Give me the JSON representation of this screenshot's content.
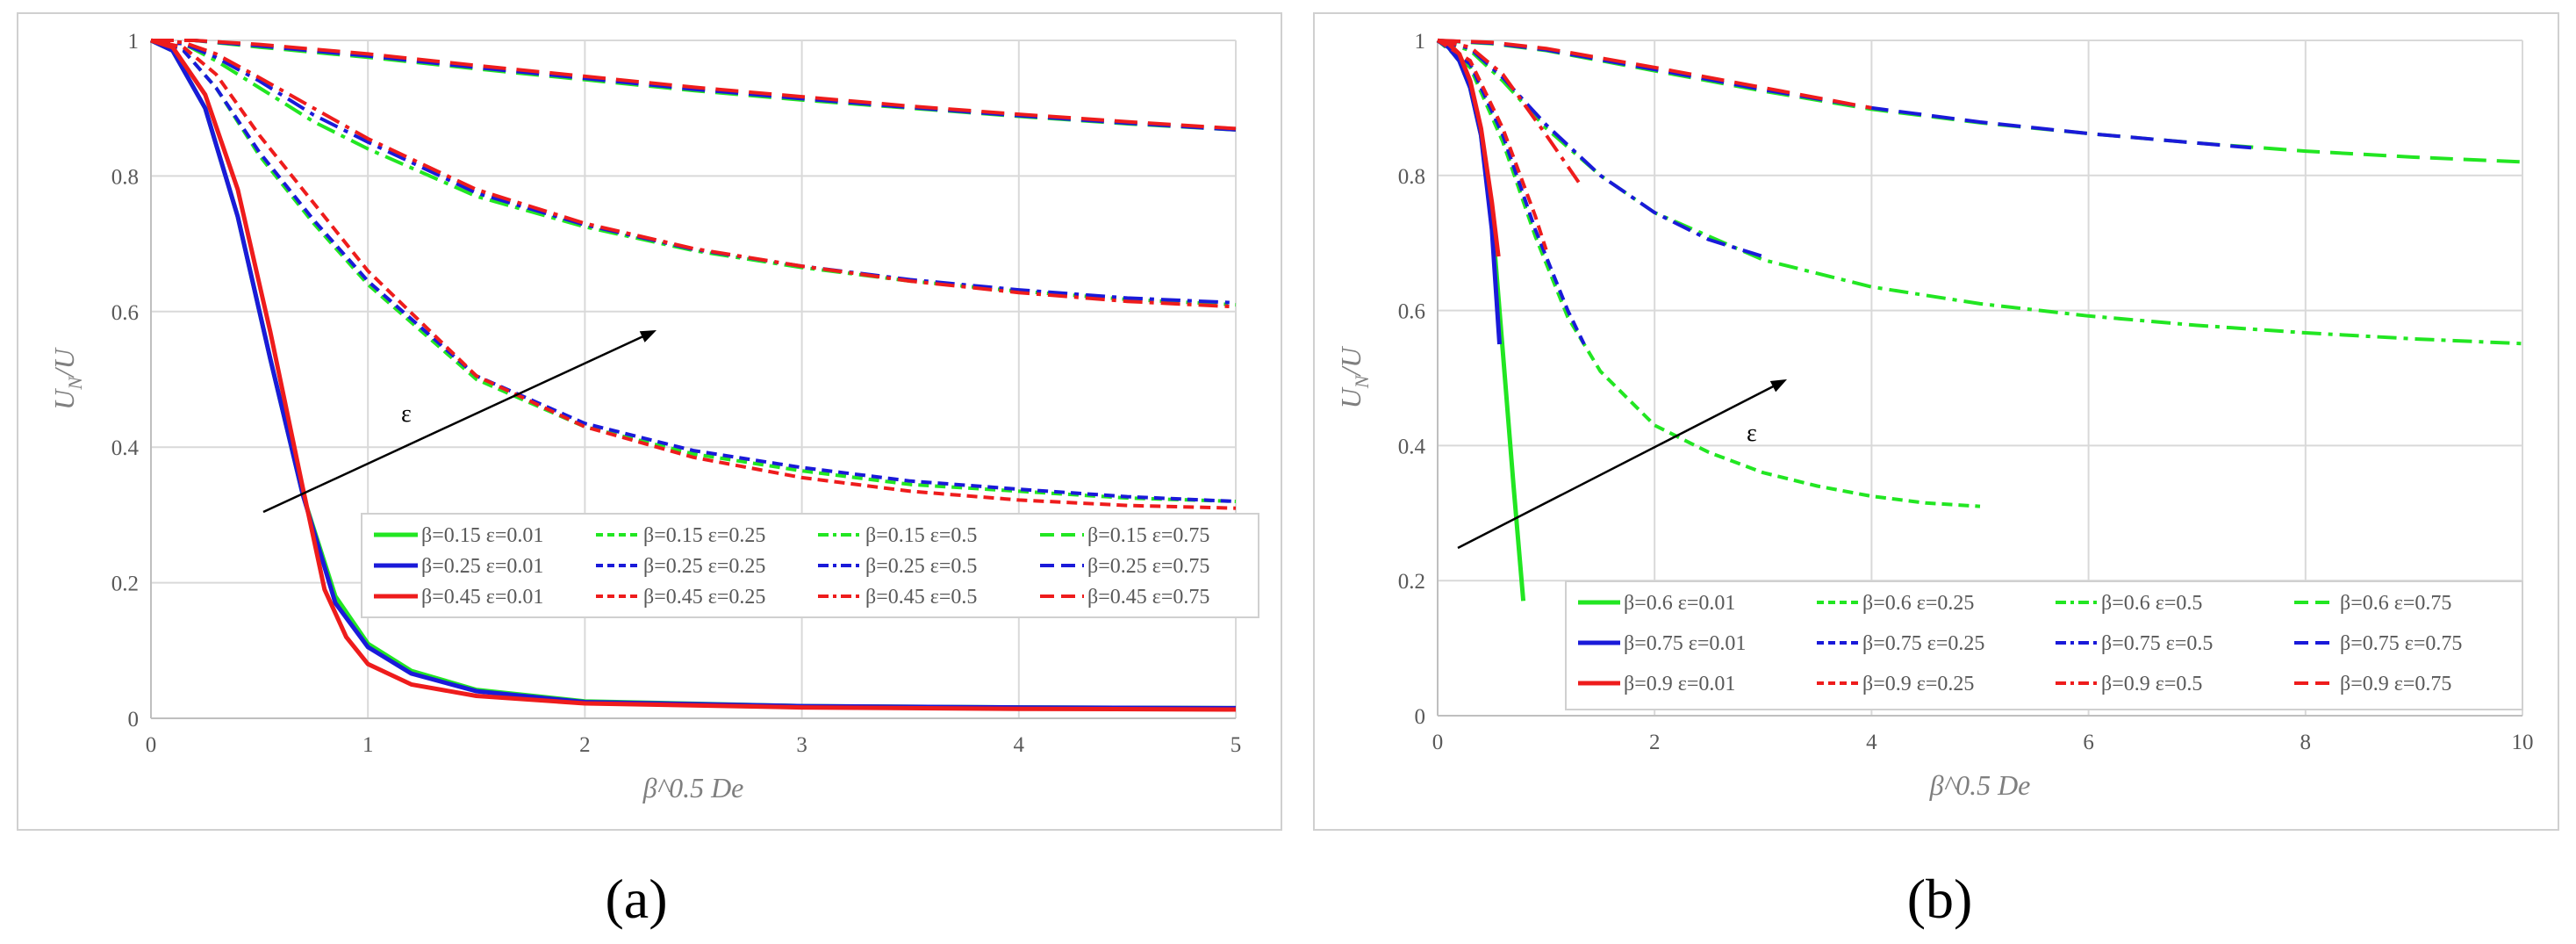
{
  "colors": {
    "green": "#22e622",
    "blue": "#1a1ad9",
    "red": "#ee1c1c"
  },
  "chart_data": [
    {
      "type": "line",
      "panel_label": "(a)",
      "xlabel": "β^0.5 De",
      "ylabel": "U_N/U",
      "ylabel_main": "U",
      "ylabel_sub": "N",
      "ylabel_tail": "/U",
      "xlim": [
        0,
        5
      ],
      "ylim": [
        0,
        1
      ],
      "xticks": [
        "0",
        "1",
        "2",
        "3",
        "4",
        "5"
      ],
      "yticks": [
        "0",
        "0.2",
        "0.4",
        "0.6",
        "0.8",
        "1"
      ],
      "annotation": "ε",
      "legend_position": "bottom-right",
      "series": [
        {
          "name": "β=0.15 ε=0.01",
          "color": "green",
          "dash": "solid",
          "x": [
            0,
            0.1,
            0.25,
            0.4,
            0.55,
            0.7,
            0.85,
            1.0,
            1.2,
            1.5,
            2,
            3,
            4,
            5
          ],
          "y": [
            1,
            0.985,
            0.9,
            0.74,
            0.53,
            0.33,
            0.18,
            0.11,
            0.07,
            0.042,
            0.025,
            0.018,
            0.016,
            0.015
          ]
        },
        {
          "name": "β=0.15 ε=0.25",
          "color": "green",
          "dash": "dash",
          "x": [
            0,
            0.15,
            0.3,
            0.5,
            0.75,
            1.0,
            1.5,
            2,
            2.5,
            3,
            3.5,
            4,
            4.5,
            5
          ],
          "y": [
            1,
            0.985,
            0.93,
            0.83,
            0.73,
            0.64,
            0.5,
            0.43,
            0.39,
            0.365,
            0.345,
            0.335,
            0.325,
            0.32
          ]
        },
        {
          "name": "β=0.15 ε=0.5",
          "color": "green",
          "dash": "dashdot",
          "x": [
            0,
            0.15,
            0.3,
            0.5,
            0.75,
            1.0,
            1.5,
            2,
            2.5,
            3,
            3.5,
            4,
            4.5,
            5
          ],
          "y": [
            1,
            0.995,
            0.97,
            0.93,
            0.88,
            0.84,
            0.77,
            0.725,
            0.69,
            0.665,
            0.645,
            0.63,
            0.618,
            0.61
          ]
        },
        {
          "name": "β=0.15 ε=0.75",
          "color": "green",
          "dash": "longdash",
          "x": [
            0,
            0.2,
            0.5,
            1.0,
            1.5,
            2,
            2.5,
            3,
            3.5,
            4,
            4.5,
            5
          ],
          "y": [
            1,
            1,
            0.99,
            0.975,
            0.958,
            0.942,
            0.926,
            0.912,
            0.9,
            0.888,
            0.877,
            0.868
          ]
        },
        {
          "name": "β=0.25 ε=0.01",
          "color": "blue",
          "dash": "solid",
          "x": [
            0,
            0.1,
            0.25,
            0.4,
            0.55,
            0.7,
            0.85,
            1.0,
            1.2,
            1.5,
            2,
            3,
            4,
            5
          ],
          "y": [
            1,
            0.985,
            0.9,
            0.74,
            0.53,
            0.33,
            0.17,
            0.105,
            0.066,
            0.04,
            0.024,
            0.018,
            0.016,
            0.015
          ]
        },
        {
          "name": "β=0.25 ε=0.25",
          "color": "blue",
          "dash": "dash",
          "x": [
            0,
            0.15,
            0.3,
            0.5,
            0.75,
            1.0,
            1.5,
            2,
            2.5,
            3,
            3.5,
            4,
            4.5,
            5
          ],
          "y": [
            1,
            0.985,
            0.93,
            0.835,
            0.735,
            0.645,
            0.505,
            0.435,
            0.395,
            0.37,
            0.35,
            0.338,
            0.327,
            0.32
          ]
        },
        {
          "name": "β=0.25 ε=0.5",
          "color": "blue",
          "dash": "dashdot",
          "x": [
            0,
            0.15,
            0.3,
            0.5,
            0.75,
            1.0,
            1.5,
            2,
            2.5,
            3,
            3.5,
            4,
            4.5,
            5
          ],
          "y": [
            1,
            0.995,
            0.975,
            0.94,
            0.89,
            0.85,
            0.775,
            0.728,
            0.692,
            0.667,
            0.647,
            0.632,
            0.62,
            0.613
          ]
        },
        {
          "name": "β=0.25 ε=0.75",
          "color": "blue",
          "dash": "longdash",
          "x": [
            0,
            0.2,
            0.5,
            1.0,
            1.5,
            2,
            2.5,
            3,
            3.5,
            4,
            4.5,
            5
          ],
          "y": [
            1,
            1,
            0.992,
            0.977,
            0.96,
            0.944,
            0.928,
            0.914,
            0.901,
            0.889,
            0.878,
            0.868
          ]
        },
        {
          "name": "β=0.45 ε=0.01",
          "color": "red",
          "dash": "solid",
          "x": [
            0,
            0.1,
            0.25,
            0.4,
            0.55,
            0.7,
            0.8,
            0.9,
            1.0,
            1.2,
            1.5,
            2,
            3,
            4,
            5
          ],
          "y": [
            1,
            0.99,
            0.92,
            0.78,
            0.57,
            0.34,
            0.19,
            0.12,
            0.08,
            0.05,
            0.033,
            0.022,
            0.016,
            0.014,
            0.013
          ]
        },
        {
          "name": "β=0.45 ε=0.25",
          "color": "red",
          "dash": "dash",
          "x": [
            0,
            0.15,
            0.3,
            0.5,
            0.75,
            1.0,
            1.5,
            2,
            2.5,
            3,
            3.5,
            4,
            4.5,
            5
          ],
          "y": [
            1,
            0.99,
            0.95,
            0.86,
            0.76,
            0.66,
            0.505,
            0.43,
            0.385,
            0.355,
            0.335,
            0.322,
            0.314,
            0.31
          ]
        },
        {
          "name": "β=0.45 ε=0.5",
          "color": "red",
          "dash": "dashdot",
          "x": [
            0,
            0.15,
            0.3,
            0.5,
            0.75,
            1.0,
            1.5,
            2,
            2.5,
            3,
            3.5,
            4,
            4.5,
            5
          ],
          "y": [
            1,
            0.997,
            0.98,
            0.945,
            0.9,
            0.855,
            0.78,
            0.73,
            0.693,
            0.667,
            0.645,
            0.628,
            0.615,
            0.607
          ]
        },
        {
          "name": "β=0.45 ε=0.75",
          "color": "red",
          "dash": "longdash",
          "x": [
            0,
            0.2,
            0.5,
            1.0,
            1.5,
            2,
            2.5,
            3,
            3.5,
            4,
            4.5,
            5
          ],
          "y": [
            1,
            1,
            0.994,
            0.98,
            0.963,
            0.947,
            0.931,
            0.917,
            0.903,
            0.891,
            0.88,
            0.87
          ]
        }
      ]
    },
    {
      "type": "line",
      "panel_label": "(b)",
      "xlabel": "β^0.5 De",
      "ylabel": "U_N/U",
      "ylabel_main": "U",
      "ylabel_sub": "N",
      "ylabel_tail": "/U",
      "xlim": [
        0,
        10
      ],
      "ylim": [
        0,
        1
      ],
      "xticks": [
        "0",
        "2",
        "4",
        "6",
        "8",
        "10"
      ],
      "yticks": [
        "0",
        "0.2",
        "0.4",
        "0.6",
        "0.8",
        "1"
      ],
      "annotation": "ε",
      "legend_position": "bottom-right",
      "series": [
        {
          "name": "β=0.6 ε=0.01",
          "color": "green",
          "dash": "solid",
          "x": [
            0,
            0.1,
            0.2,
            0.3,
            0.4,
            0.5,
            0.55,
            0.6,
            0.7,
            0.79
          ],
          "y": [
            1,
            0.99,
            0.97,
            0.93,
            0.86,
            0.74,
            0.64,
            0.54,
            0.34,
            0.17
          ]
        },
        {
          "name": "β=0.6 ε=0.25",
          "color": "green",
          "dash": "dash",
          "x": [
            0,
            0.3,
            0.6,
            0.9,
            1.2,
            1.5,
            2,
            2.5,
            3,
            3.5,
            4,
            4.5,
            5
          ],
          "y": [
            1,
            0.96,
            0.85,
            0.71,
            0.59,
            0.51,
            0.43,
            0.39,
            0.36,
            0.34,
            0.325,
            0.315,
            0.31
          ]
        },
        {
          "name": "β=0.6 ε=0.5",
          "color": "green",
          "dash": "dashdot",
          "x": [
            0,
            0.3,
            0.6,
            1,
            1.5,
            2,
            3,
            4,
            5,
            6,
            7,
            8,
            9,
            10
          ],
          "y": [
            1,
            0.985,
            0.94,
            0.87,
            0.8,
            0.745,
            0.675,
            0.635,
            0.61,
            0.592,
            0.578,
            0.567,
            0.558,
            0.551
          ]
        },
        {
          "name": "β=0.6 ε=0.75",
          "color": "green",
          "dash": "longdash",
          "x": [
            0,
            0.5,
            1,
            2,
            3,
            4,
            5,
            6,
            7,
            8,
            9,
            10
          ],
          "y": [
            1,
            0.995,
            0.985,
            0.955,
            0.925,
            0.898,
            0.878,
            0.862,
            0.848,
            0.836,
            0.827,
            0.82
          ]
        },
        {
          "name": "β=0.75 ε=0.01",
          "color": "blue",
          "dash": "solid",
          "x": [
            0,
            0.1,
            0.2,
            0.3,
            0.4,
            0.5,
            0.57
          ],
          "y": [
            1,
            0.99,
            0.97,
            0.93,
            0.86,
            0.72,
            0.55
          ]
        },
        {
          "name": "β=0.75 ε=0.25",
          "color": "blue",
          "dash": "dash",
          "x": [
            0,
            0.3,
            0.6,
            0.9,
            1.2,
            1.35
          ],
          "y": [
            1,
            0.965,
            0.86,
            0.72,
            0.6,
            0.55
          ]
        },
        {
          "name": "β=0.75 ε=0.5",
          "color": "blue",
          "dash": "dashdot",
          "x": [
            0,
            0.3,
            0.6,
            1,
            1.5,
            2,
            2.5,
            3
          ],
          "y": [
            1,
            0.988,
            0.945,
            0.875,
            0.8,
            0.745,
            0.705,
            0.68
          ]
        },
        {
          "name": "β=0.75 ε=0.75",
          "color": "blue",
          "dash": "longdash",
          "x": [
            0,
            0.5,
            1,
            2,
            3,
            4,
            5,
            6,
            7,
            7.5
          ],
          "y": [
            1,
            0.996,
            0.986,
            0.957,
            0.927,
            0.9,
            0.879,
            0.862,
            0.848,
            0.841
          ]
        },
        {
          "name": "β=0.9 ε=0.01",
          "color": "red",
          "dash": "solid",
          "x": [
            0,
            0.1,
            0.2,
            0.3,
            0.4,
            0.5,
            0.56
          ],
          "y": [
            1,
            0.995,
            0.98,
            0.94,
            0.87,
            0.76,
            0.68
          ]
        },
        {
          "name": "β=0.9 ε=0.25",
          "color": "red",
          "dash": "dash",
          "x": [
            0,
            0.3,
            0.6,
            0.9,
            1.0
          ],
          "y": [
            1,
            0.97,
            0.87,
            0.74,
            0.69
          ]
        },
        {
          "name": "β=0.9 ε=0.5",
          "color": "red",
          "dash": "dashdot",
          "x": [
            0,
            0.3,
            0.6,
            1.0,
            1.3
          ],
          "y": [
            1,
            0.99,
            0.95,
            0.86,
            0.79
          ]
        },
        {
          "name": "β=0.9 ε=0.75",
          "color": "red",
          "dash": "longdash",
          "x": [
            0,
            0.5,
            1,
            2,
            3,
            4
          ],
          "y": [
            1,
            0.997,
            0.988,
            0.96,
            0.93,
            0.9
          ]
        }
      ]
    }
  ]
}
